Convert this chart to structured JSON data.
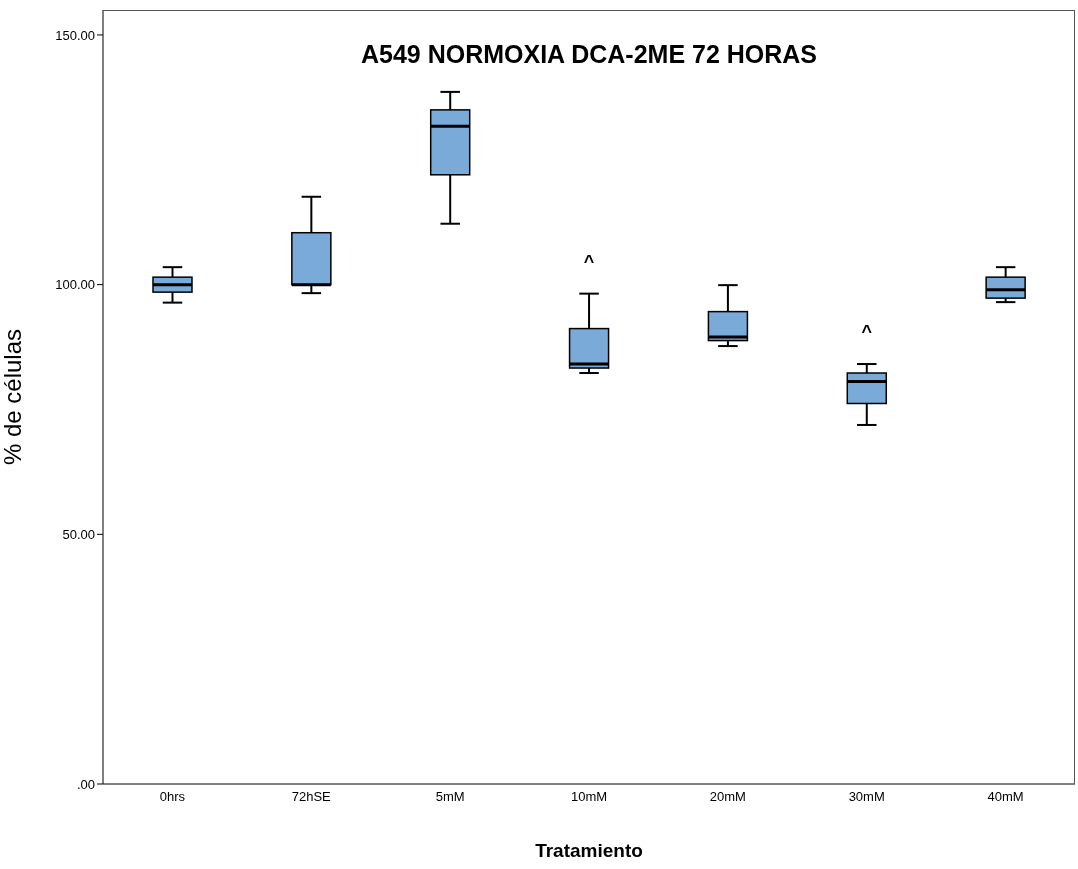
{
  "chart_data": {
    "type": "box",
    "title": "A549 NORMOXIA DCA-2ME 72 HORAS",
    "xlabel": "Tratamiento",
    "ylabel": "% de células",
    "categories": [
      "0hrs",
      "72hSE",
      "5mM",
      "10mM",
      "20mM",
      "30mM",
      "40mM"
    ],
    "color": "#7aaad8",
    "boxes": [
      {
        "low": 96.4,
        "q1": 98.5,
        "median": 100,
        "q3": 101.5,
        "high": 103.5
      },
      {
        "low": 98.3,
        "q1": 100,
        "median": 100,
        "q3": 110.4,
        "high": 117.6
      },
      {
        "low": 112.2,
        "q1": 122,
        "median": 131.7,
        "q3": 135,
        "high": 138.6
      },
      {
        "low": 82.3,
        "q1": 83.3,
        "median": 84.1,
        "q3": 91.2,
        "high": 98.2
      },
      {
        "low": 87.7,
        "q1": 88.8,
        "median": 89.5,
        "q3": 94.6,
        "high": 99.9
      },
      {
        "low": 71.9,
        "q1": 76.2,
        "median": 80.6,
        "q3": 82.3,
        "high": 84.1
      },
      {
        "low": 96.5,
        "q1": 97.3,
        "median": 99,
        "q3": 101.5,
        "high": 103.5
      }
    ],
    "ylim": [
      0,
      155
    ],
    "yticks": [
      {
        "value": 0,
        "label": ".00"
      },
      {
        "value": 50,
        "label": "50.00"
      },
      {
        "value": 100,
        "label": "100.00"
      },
      {
        "value": 150,
        "label": "150.00"
      }
    ],
    "annotations": [
      "^",
      "^"
    ],
    "grid": false
  }
}
